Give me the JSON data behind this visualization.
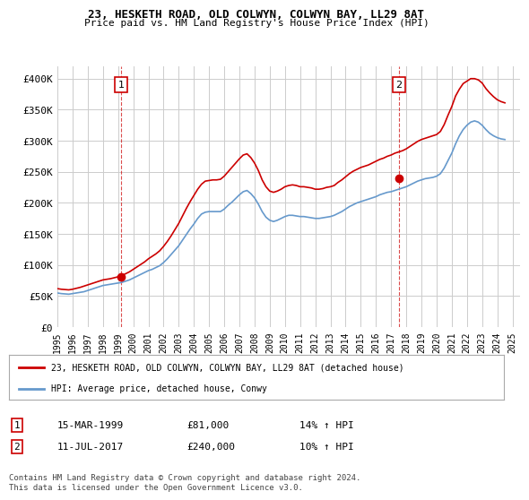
{
  "title": "23, HESKETH ROAD, OLD COLWYN, COLWYN BAY, LL29 8AT",
  "subtitle": "Price paid vs. HM Land Registry's House Price Index (HPI)",
  "ylabel_ticks": [
    "£0",
    "£50K",
    "£100K",
    "£150K",
    "£200K",
    "£250K",
    "£300K",
    "£350K",
    "£400K"
  ],
  "ylabel_values": [
    0,
    50000,
    100000,
    150000,
    200000,
    250000,
    300000,
    350000,
    400000
  ],
  "ylim": [
    0,
    420000
  ],
  "xlim_start": 1995.0,
  "xlim_end": 2025.5,
  "xtick_years": [
    1995,
    1996,
    1997,
    1998,
    1999,
    2000,
    2001,
    2002,
    2003,
    2004,
    2005,
    2006,
    2007,
    2008,
    2009,
    2010,
    2011,
    2012,
    2013,
    2014,
    2015,
    2016,
    2017,
    2018,
    2019,
    2020,
    2021,
    2022,
    2023,
    2024,
    2025
  ],
  "sale1_x": 1999.21,
  "sale1_y": 81000,
  "sale2_x": 2017.53,
  "sale2_y": 240000,
  "legend_line1": "23, HESKETH ROAD, OLD COLWYN, COLWYN BAY, LL29 8AT (detached house)",
  "legend_line2": "HPI: Average price, detached house, Conwy",
  "annotation1_label": "1",
  "annotation2_label": "2",
  "table_row1": [
    "1",
    "15-MAR-1999",
    "£81,000",
    "14% ↑ HPI"
  ],
  "table_row2": [
    "2",
    "11-JUL-2017",
    "£240,000",
    "10% ↑ HPI"
  ],
  "footnote": "Contains HM Land Registry data © Crown copyright and database right 2024.\nThis data is licensed under the Open Government Licence v3.0.",
  "color_red": "#cc0000",
  "color_blue": "#6699cc",
  "color_grid": "#cccccc",
  "background_color": "#ffffff",
  "hpi_data_x": [
    1995.0,
    1995.25,
    1995.5,
    1995.75,
    1996.0,
    1996.25,
    1996.5,
    1996.75,
    1997.0,
    1997.25,
    1997.5,
    1997.75,
    1998.0,
    1998.25,
    1998.5,
    1998.75,
    1999.0,
    1999.25,
    1999.5,
    1999.75,
    2000.0,
    2000.25,
    2000.5,
    2000.75,
    2001.0,
    2001.25,
    2001.5,
    2001.75,
    2002.0,
    2002.25,
    2002.5,
    2002.75,
    2003.0,
    2003.25,
    2003.5,
    2003.75,
    2004.0,
    2004.25,
    2004.5,
    2004.75,
    2005.0,
    2005.25,
    2005.5,
    2005.75,
    2006.0,
    2006.25,
    2006.5,
    2006.75,
    2007.0,
    2007.25,
    2007.5,
    2007.75,
    2008.0,
    2008.25,
    2008.5,
    2008.75,
    2009.0,
    2009.25,
    2009.5,
    2009.75,
    2010.0,
    2010.25,
    2010.5,
    2010.75,
    2011.0,
    2011.25,
    2011.5,
    2011.75,
    2012.0,
    2012.25,
    2012.5,
    2012.75,
    2013.0,
    2013.25,
    2013.5,
    2013.75,
    2014.0,
    2014.25,
    2014.5,
    2014.75,
    2015.0,
    2015.25,
    2015.5,
    2015.75,
    2016.0,
    2016.25,
    2016.5,
    2016.75,
    2017.0,
    2017.25,
    2017.5,
    2017.75,
    2018.0,
    2018.25,
    2018.5,
    2018.75,
    2019.0,
    2019.25,
    2019.5,
    2019.75,
    2020.0,
    2020.25,
    2020.5,
    2020.75,
    2021.0,
    2021.25,
    2021.5,
    2021.75,
    2022.0,
    2022.25,
    2022.5,
    2022.75,
    2023.0,
    2023.25,
    2023.5,
    2023.75,
    2024.0,
    2024.25,
    2024.5
  ],
  "hpi_data_y": [
    55000,
    54000,
    53500,
    53000,
    54000,
    55000,
    56000,
    57000,
    59000,
    61000,
    63000,
    65000,
    67000,
    68000,
    69000,
    70000,
    71000,
    72000,
    74000,
    76000,
    79000,
    82000,
    85000,
    88000,
    91000,
    93000,
    96000,
    99000,
    104000,
    110000,
    117000,
    124000,
    131000,
    140000,
    149000,
    158000,
    166000,
    175000,
    182000,
    185000,
    186000,
    186000,
    186000,
    186000,
    190000,
    196000,
    201000,
    207000,
    213000,
    218000,
    220000,
    215000,
    208000,
    198000,
    186000,
    177000,
    172000,
    170000,
    172000,
    175000,
    178000,
    180000,
    180000,
    179000,
    178000,
    178000,
    177000,
    176000,
    175000,
    175000,
    176000,
    177000,
    178000,
    180000,
    183000,
    186000,
    190000,
    194000,
    197000,
    200000,
    202000,
    204000,
    206000,
    208000,
    210000,
    213000,
    215000,
    217000,
    218000,
    220000,
    222000,
    224000,
    226000,
    229000,
    232000,
    235000,
    237000,
    239000,
    240000,
    241000,
    243000,
    247000,
    256000,
    268000,
    280000,
    295000,
    308000,
    318000,
    325000,
    330000,
    332000,
    330000,
    325000,
    318000,
    312000,
    308000,
    305000,
    303000,
    302000
  ],
  "red_data_x": [
    1995.0,
    1995.25,
    1995.5,
    1995.75,
    1996.0,
    1996.25,
    1996.5,
    1996.75,
    1997.0,
    1997.25,
    1997.5,
    1997.75,
    1998.0,
    1998.25,
    1998.5,
    1998.75,
    1999.0,
    1999.25,
    1999.5,
    1999.75,
    2000.0,
    2000.25,
    2000.5,
    2000.75,
    2001.0,
    2001.25,
    2001.5,
    2001.75,
    2002.0,
    2002.25,
    2002.5,
    2002.75,
    2003.0,
    2003.25,
    2003.5,
    2003.75,
    2004.0,
    2004.25,
    2004.5,
    2004.75,
    2005.0,
    2005.25,
    2005.5,
    2005.75,
    2006.0,
    2006.25,
    2006.5,
    2006.75,
    2007.0,
    2007.25,
    2007.5,
    2007.75,
    2008.0,
    2008.25,
    2008.5,
    2008.75,
    2009.0,
    2009.25,
    2009.5,
    2009.75,
    2010.0,
    2010.25,
    2010.5,
    2010.75,
    2011.0,
    2011.25,
    2011.5,
    2011.75,
    2012.0,
    2012.25,
    2012.5,
    2012.75,
    2013.0,
    2013.25,
    2013.5,
    2013.75,
    2014.0,
    2014.25,
    2014.5,
    2014.75,
    2015.0,
    2015.25,
    2015.5,
    2015.75,
    2016.0,
    2016.25,
    2016.5,
    2016.75,
    2017.0,
    2017.25,
    2017.5,
    2017.75,
    2018.0,
    2018.25,
    2018.5,
    2018.75,
    2019.0,
    2019.25,
    2019.5,
    2019.75,
    2020.0,
    2020.25,
    2020.5,
    2020.75,
    2021.0,
    2021.25,
    2021.5,
    2021.75,
    2022.0,
    2022.25,
    2022.5,
    2022.75,
    2023.0,
    2023.25,
    2023.5,
    2023.75,
    2024.0,
    2024.25,
    2024.5
  ],
  "red_data_y": [
    62000,
    61000,
    60500,
    60000,
    61000,
    62500,
    64000,
    66000,
    68000,
    70000,
    72000,
    74000,
    76000,
    77000,
    78000,
    79500,
    81000,
    83000,
    86000,
    89000,
    93000,
    97000,
    101000,
    105000,
    110000,
    114000,
    118000,
    123000,
    130000,
    138000,
    147000,
    157000,
    167000,
    179000,
    191000,
    202000,
    212000,
    222000,
    230000,
    235000,
    236000,
    237000,
    237000,
    238000,
    243000,
    250000,
    257000,
    264000,
    271000,
    277000,
    279000,
    273000,
    264000,
    252000,
    237000,
    226000,
    219000,
    217000,
    219000,
    222000,
    226000,
    228000,
    229000,
    228000,
    226000,
    226000,
    225000,
    224000,
    222000,
    222000,
    223000,
    225000,
    226000,
    228000,
    233000,
    237000,
    242000,
    247000,
    251000,
    254000,
    257000,
    259000,
    261000,
    264000,
    267000,
    270000,
    272000,
    275000,
    277000,
    280000,
    282000,
    284000,
    287000,
    291000,
    295000,
    299000,
    302000,
    304000,
    306000,
    308000,
    310000,
    315000,
    326000,
    341000,
    355000,
    372000,
    383000,
    392000,
    396000,
    400000,
    400000,
    398000,
    393000,
    384000,
    377000,
    371000,
    366000,
    363000,
    361000
  ]
}
